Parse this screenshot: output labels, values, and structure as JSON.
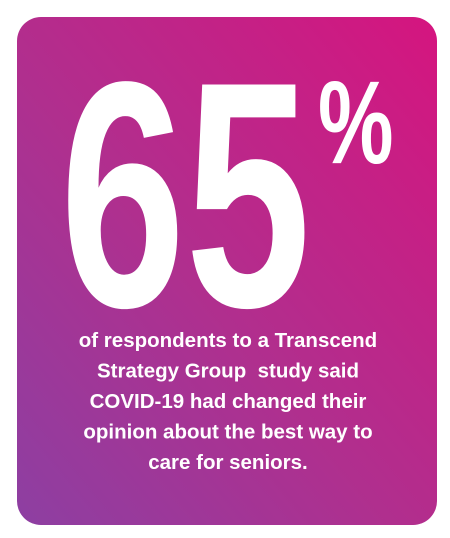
{
  "stat": {
    "number": "65",
    "unit": "%"
  },
  "caption": {
    "lines": [
      "of respondents to a Transcend",
      "Strategy Group  study said",
      "COVID-19 had changed their",
      "opinion about the best way to",
      "care for seniors."
    ]
  }
}
